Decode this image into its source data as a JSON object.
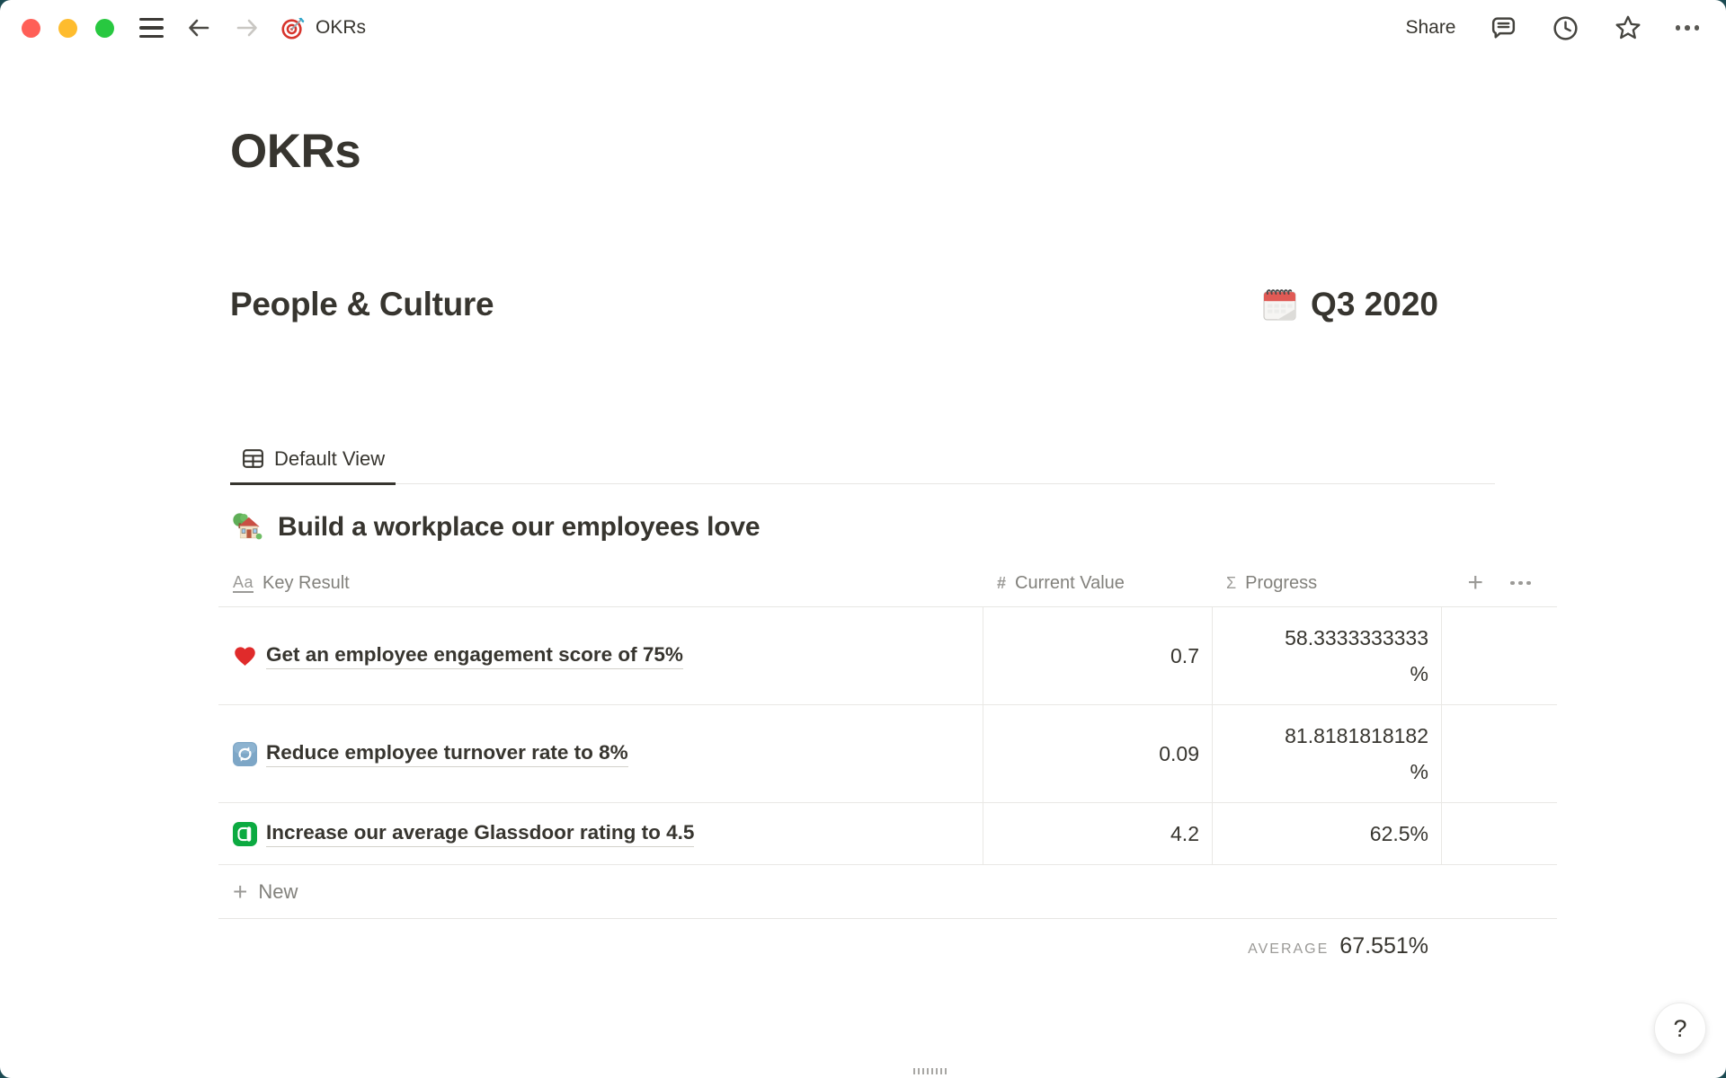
{
  "topbar": {
    "traffic_lights": {
      "close": "#ff5f57",
      "minimize": "#febc2e",
      "zoom": "#28c840"
    },
    "page_icon": "dart-target",
    "title": "OKRs",
    "share_label": "Share"
  },
  "page": {
    "title": "OKRs",
    "section": {
      "heading": "People & Culture",
      "quarter_icon": "spiral-calendar",
      "quarter": "Q3 2020"
    },
    "view_tab": {
      "icon": "table-view",
      "label": "Default View"
    },
    "group": {
      "icon": "house-with-garden",
      "title": "Build a workplace our employees love"
    },
    "table": {
      "columns": [
        {
          "icon_glyph": "Aa",
          "label": "Key Result"
        },
        {
          "icon_glyph": "#",
          "label": "Current Value"
        },
        {
          "icon_glyph": "Σ",
          "label": "Progress"
        }
      ],
      "rows": [
        {
          "icon": "red-heart",
          "title": "Get an employee engagement score of 75%",
          "current_value": "0.7",
          "progress_lines": [
            "58.3333333333",
            "%"
          ]
        },
        {
          "icon": "counterclockwise-arrows",
          "title": "Reduce employee turnover rate to 8%",
          "current_value": "0.09",
          "progress_lines": [
            "81.8181818182",
            "%"
          ]
        },
        {
          "icon": "glassdoor",
          "title": "Increase our average Glassdoor rating to 4.5",
          "current_value": "4.2",
          "progress_lines": [
            "62.5%"
          ]
        }
      ],
      "new_row_label": "New",
      "average_label": "AVERAGE",
      "average_value": "67.551%"
    }
  },
  "help_label": "?",
  "colors": {
    "text": "#37352f",
    "muted": "#9b9a97",
    "border": "#e9e8e5",
    "desktop_background": "#1b4a52",
    "glassdoor_green": "#0caa41"
  }
}
